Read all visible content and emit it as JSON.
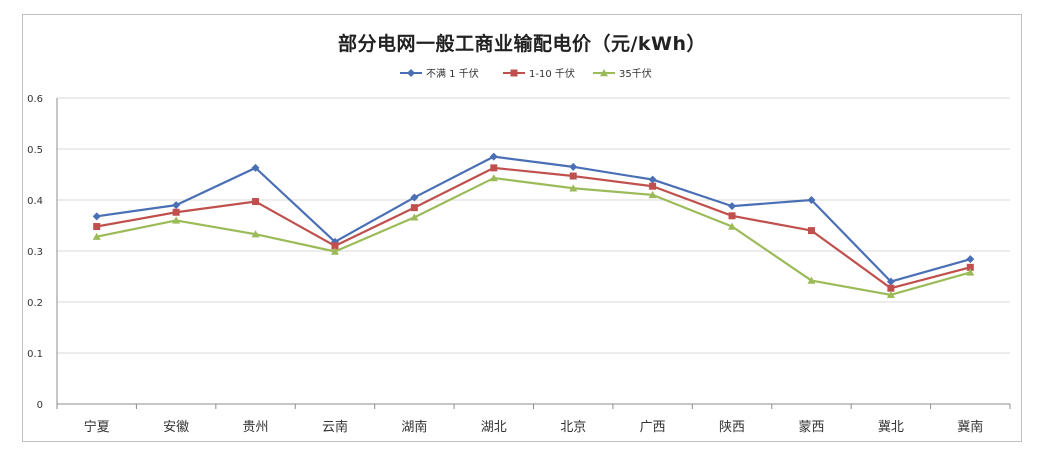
{
  "chart_data": {
    "type": "line",
    "title": "部分电网一般工商业输配电价（元/kWh）",
    "xlabel": "",
    "ylabel": "",
    "ylim": [
      0,
      0.6
    ],
    "yticks": [
      "0",
      "0.1",
      "0.2",
      "0.3",
      "0.4",
      "0.5",
      "0.6"
    ],
    "grid": true,
    "legend_position": "top-center",
    "categories": [
      "宁夏",
      "安徽",
      "贵州",
      "云南",
      "湖南",
      "湖北",
      "北京",
      "广西",
      "陕西",
      "蒙西",
      "冀北",
      "冀南"
    ],
    "series": [
      {
        "name": "不满 1 千伏",
        "color": "#4a6fb5",
        "marker": "diamond",
        "values": [
          0.368,
          0.39,
          0.463,
          0.318,
          0.405,
          0.485,
          0.465,
          0.44,
          0.388,
          0.4,
          0.24,
          0.284
        ]
      },
      {
        "name": "1-10 千伏",
        "color": "#c0504d",
        "marker": "square",
        "values": [
          0.348,
          0.376,
          0.397,
          0.31,
          0.385,
          0.463,
          0.447,
          0.427,
          0.369,
          0.34,
          0.227,
          0.268
        ]
      },
      {
        "name": "35千伏",
        "color": "#9bbb59",
        "marker": "triangle",
        "values": [
          0.328,
          0.36,
          0.333,
          0.299,
          0.366,
          0.443,
          0.423,
          0.41,
          0.348,
          0.242,
          0.214,
          0.258
        ]
      }
    ]
  }
}
